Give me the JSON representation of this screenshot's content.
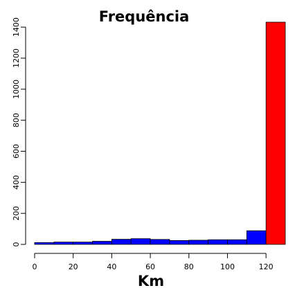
{
  "chart_data": {
    "type": "bar",
    "title": "Frequência",
    "xlabel": "Km",
    "ylabel": "",
    "bins": [
      {
        "x0": 0,
        "x1": 10,
        "value": 12,
        "color": "#0000ff"
      },
      {
        "x0": 10,
        "x1": 20,
        "value": 15,
        "color": "#0000ff"
      },
      {
        "x0": 20,
        "x1": 30,
        "value": 15,
        "color": "#0000ff"
      },
      {
        "x0": 30,
        "x1": 40,
        "value": 20,
        "color": "#0000ff"
      },
      {
        "x0": 40,
        "x1": 50,
        "value": 33,
        "color": "#0000ff"
      },
      {
        "x0": 50,
        "x1": 60,
        "value": 37,
        "color": "#0000ff"
      },
      {
        "x0": 60,
        "x1": 70,
        "value": 32,
        "color": "#0000ff"
      },
      {
        "x0": 70,
        "x1": 80,
        "value": 25,
        "color": "#0000ff"
      },
      {
        "x0": 80,
        "x1": 90,
        "value": 27,
        "color": "#0000ff"
      },
      {
        "x0": 90,
        "x1": 100,
        "value": 30,
        "color": "#0000ff"
      },
      {
        "x0": 100,
        "x1": 110,
        "value": 30,
        "color": "#0000ff"
      },
      {
        "x0": 110,
        "x1": 120,
        "value": 88,
        "color": "#0000ff"
      },
      {
        "x0": 120,
        "x1": 130,
        "value": 1432,
        "color": "#ff0000"
      }
    ],
    "xlim": [
      0,
      130
    ],
    "ylim": [
      0,
      1432
    ],
    "xticks": [
      0,
      20,
      40,
      60,
      80,
      100,
      120
    ],
    "yticks": [
      0,
      200,
      400,
      600,
      800,
      1000,
      1200,
      1400
    ],
    "grid": false
  }
}
